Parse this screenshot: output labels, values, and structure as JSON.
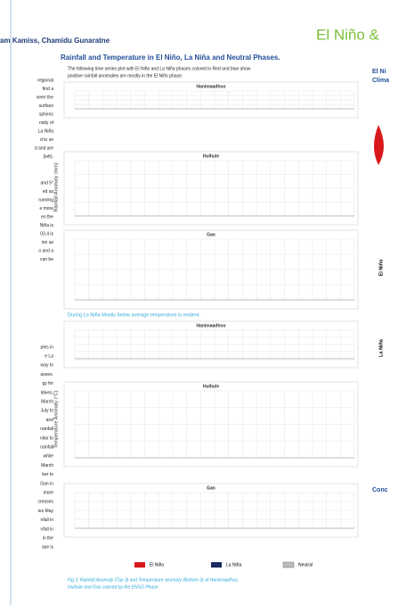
{
  "header": {
    "title": "El Niño &",
    "authors": "am Kamiss, Chamidu Gunaratne"
  },
  "center": {
    "heading": "Rainfall and Temperature in El Niño, La Niña and Neutral Phases.",
    "intro": [
      "The following time series plot with El Niño and La Niña phases colored in Red and blue show",
      "positive rainfall anomalies  are mostly in the El Niño phase."
    ],
    "panels": [
      "Hanimaadhoo",
      "Hulhule",
      "Gan",
      "Hanimaadhoo",
      "Hulhule",
      "Gan"
    ],
    "note": "During La Niña Mostly below average temperature is evident.",
    "rain_axis": "Rainfall Anomaly (mm)",
    "temp_axis": "Temperature Anomaly (°C)",
    "legend": [
      "El Niño",
      "La Niña",
      "Neutral"
    ],
    "caption": [
      "Fig 3: Rainfall Anomaly (Top 3) and Temperature anomaly (Bottom 3) of Hanimaadhoo,",
      "Hulhule and Gan colored by the ENSO Phase"
    ]
  },
  "right": {
    "heading": [
      "El Ni",
      "Clima"
    ],
    "panel_labels": [
      "El Niño",
      "La Niña"
    ],
    "conclusion": "Conc"
  },
  "left": [
    "regional",
    "find a",
    "veen the",
    "surface",
    "spheric",
    "nsity of",
    "La Niña",
    "d to se",
    "d and are",
    "(left).",
    "and 5°",
    "ed as",
    "running",
    "e more",
    "en the",
    "Niña is",
    "03.4 is",
    "ion as",
    "o and a",
    "can be",
    "pies in",
    "e La",
    "way to",
    "asses.",
    "gy for",
    "ldives,",
    "March",
    "July to",
    "and",
    "rainfall",
    "nilar to",
    "rainfall",
    "while",
    "March",
    "ber to",
    "Gan in",
    "more",
    "creases",
    "ies May",
    "nfall in",
    "nfall in",
    "in the",
    "ase is"
  ]
}
